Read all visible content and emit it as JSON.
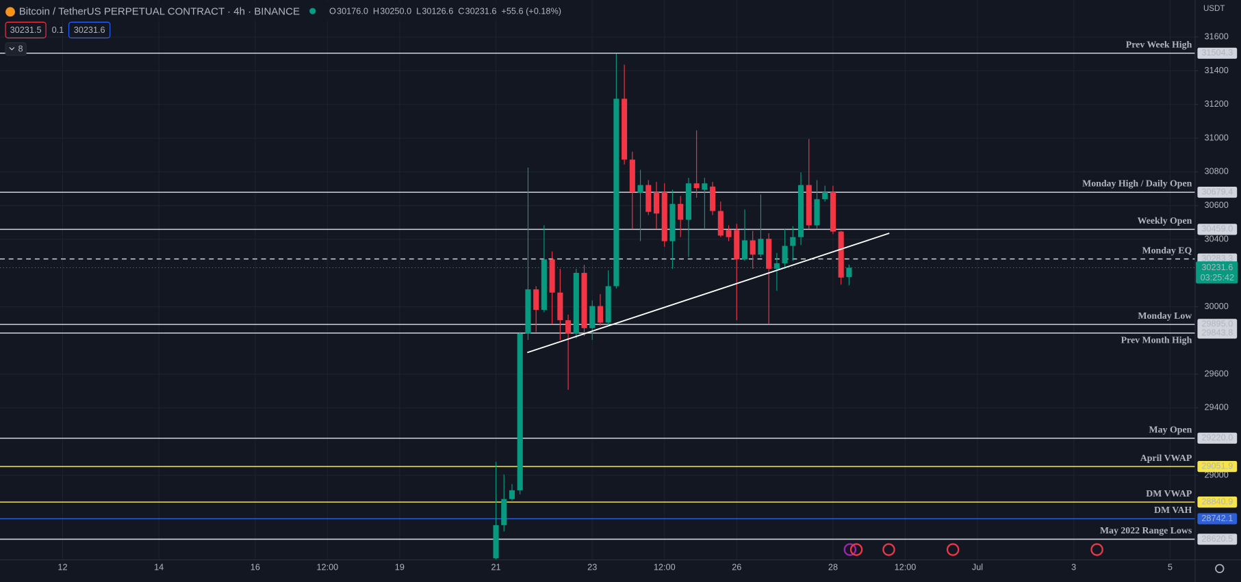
{
  "chart_data": {
    "type": "candlestick",
    "title": "Bitcoin / TetherUS PERPETUAL CONTRACT · 4h · BINANCE",
    "legend": [
      {
        "key": "O",
        "value": "30176.0"
      },
      {
        "key": "H",
        "value": "30250.0"
      },
      {
        "key": "L",
        "value": "30126.6"
      },
      {
        "key": "C",
        "value": "30231.6"
      }
    ],
    "change": "+55.6 (+0.18%)",
    "bid": "30231.5",
    "spread": "0.1",
    "ask": "30231.6",
    "currency": "USDT",
    "indicators_count": "8",
    "up_color": "#089981",
    "down_color": "#f23645",
    "x": [
      21,
      21.1667,
      21.3333,
      21.5,
      21.6667,
      21.8333,
      22,
      22.1667,
      22.3333,
      22.5,
      22.6667,
      22.8333,
      23,
      23.1667,
      23.3333,
      23.5,
      23.6667,
      23.8333,
      24,
      24.1667,
      24.3333,
      24.5,
      24.6667,
      24.8333,
      25,
      25.1667,
      25.3333,
      25.5,
      25.6667,
      25.8333,
      26,
      26.1667,
      26.3333,
      26.5,
      26.6667,
      26.8333,
      27,
      27.1667,
      27.3333,
      27.5,
      27.6667,
      27.8333,
      28,
      28.1667,
      28.3333
    ],
    "open": [
      28507,
      28704,
      28859,
      28911,
      29840,
      30103,
      29981,
      30281,
      30084,
      29920,
      29840,
      30201,
      29873,
      30004,
      29906,
      30122,
      31234,
      30873,
      30675,
      30722,
      30680,
      30680,
      30389,
      30610,
      30516,
      30732,
      30694,
      30713,
      30568,
      30455,
      30455,
      30281,
      30394,
      30309,
      30403,
      30225,
      30258,
      30361,
      30413,
      30722,
      30483,
      30638,
      30680,
      30446,
      30176
    ],
    "high": [
      29080,
      29005,
      28948,
      29850,
      30826,
      30122,
      30483,
      30328,
      30225,
      29953,
      30225,
      30248,
      30037,
      30075,
      30216,
      31501,
      31436,
      30920,
      30812,
      30751,
      30741,
      30732,
      30694,
      30657,
      30765,
      31046,
      30765,
      30741,
      30624,
      30483,
      30492,
      30577,
      30450,
      30666,
      30436,
      30319,
      30460,
      30478,
      30797,
      30995,
      30751,
      30718,
      30718,
      30450,
      30250
    ],
    "low": [
      28500,
      28667,
      28850,
      28887,
      29803,
      29850,
      29967,
      29896,
      29803,
      29507,
      29812,
      29826,
      29803,
      29887,
      29887,
      30108,
      30844,
      30460,
      30389,
      30544,
      30460,
      30356,
      30225,
      30413,
      30295,
      30647,
      30460,
      30544,
      30413,
      30389,
      29920,
      30272,
      30225,
      30295,
      29896,
      30094,
      30225,
      30272,
      30366,
      30460,
      30460,
      30624,
      30431,
      30131,
      30126.6
    ],
    "close": [
      28704,
      28859,
      28911,
      29840,
      30103,
      29981,
      30281,
      30084,
      29920,
      29840,
      30201,
      29873,
      30004,
      29906,
      30122,
      31234,
      30873,
      30680,
      30722,
      30563,
      30553,
      30389,
      30610,
      30516,
      30732,
      30704,
      30732,
      30568,
      30422,
      30413,
      30281,
      30394,
      30309,
      30403,
      30225,
      30258,
      30361,
      30413,
      30722,
      30483,
      30638,
      30680,
      30446,
      30173,
      30231.6
    ],
    "xlim": [
      10.7,
      35.52
    ],
    "xticks": [
      12,
      14,
      16,
      {
        "value": 17.5,
        "label": "12:00"
      },
      19,
      21,
      23,
      {
        "value": 24.5,
        "label": "12:00"
      },
      26,
      28,
      {
        "value": 29.5,
        "label": "12:00"
      },
      {
        "value": 31,
        "label": "Jul"
      },
      {
        "value": 33,
        "label": "3"
      },
      {
        "value": 35,
        "label": "5"
      }
    ],
    "ylim": [
      28498,
      31820
    ],
    "yticks": [
      31600,
      31400,
      31200,
      31000,
      30800,
      30600,
      30400,
      30000,
      29600,
      29400,
      29000
    ],
    "grid": true,
    "levels": [
      {
        "name": "Prev Week High",
        "value": 31504.3,
        "color": "#d1d4dc"
      },
      {
        "name": "Monday High / Daily Open",
        "value": 30679.4,
        "color": "#d1d4dc"
      },
      {
        "name": "Weekly Open",
        "value": 30459,
        "value_label": "30459.0",
        "color": "#d1d4dc"
      },
      {
        "name": "Monday EQ",
        "value": 30283.3,
        "color": "#d1d4dc",
        "dashed": true
      },
      {
        "name": "Monday Low",
        "value": 29895,
        "value_label": "29895.0",
        "color": "#d1d4dc"
      },
      {
        "name": "Prev Month High",
        "value": 29843.8,
        "color": "#d1d4dc"
      },
      {
        "name": "May Open",
        "value": 29220,
        "value_label": "29220.0",
        "color": "#d1d4dc"
      },
      {
        "name": "April VWAP",
        "value": 29051.9,
        "color": "#f5e44b"
      },
      {
        "name": "DM VWAP",
        "value": 28840.9,
        "color": "#f5e44b"
      },
      {
        "name": "DM VAH",
        "value": 28742.1,
        "color": "#2f5fd6"
      },
      {
        "name": "May 2022 Range Lows",
        "value": 28620.5,
        "color": "#d1d4dc"
      }
    ],
    "last_price": 30231.6,
    "countdown": "03:25:42",
    "trendline": {
      "x": [
        21.65,
        29.17
      ],
      "y": [
        29728,
        30436
      ],
      "color": "#ffffff"
    }
  }
}
